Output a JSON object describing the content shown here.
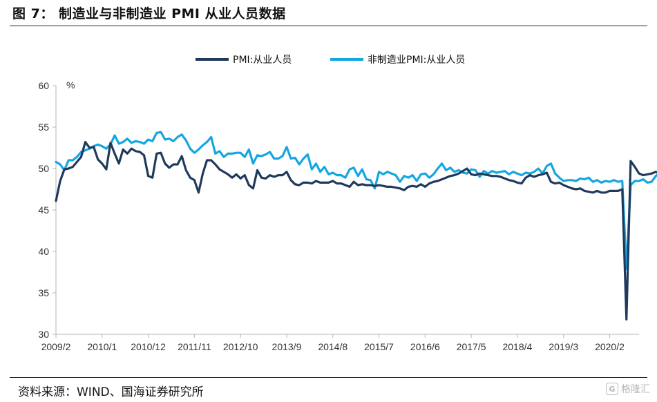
{
  "figure": {
    "title": "图 7：  制造业与非制造业 PMI 从业人员数据",
    "source": "资料来源：WIND、国海证券研究所",
    "watermark": "格隆汇",
    "watermark_icon": "G"
  },
  "colors": {
    "series_manufacturing": "#1f3a5c",
    "series_non_manufacturing": "#15a6e2",
    "axis": "#b5b5b5"
  },
  "chart_data": {
    "type": "line",
    "title": "",
    "ylabel": "%",
    "xlabel": "",
    "ylim": [
      30,
      60
    ],
    "yticks": [
      30,
      35,
      40,
      45,
      50,
      55,
      60
    ],
    "x_range": [
      0,
      139
    ],
    "xticks": [
      {
        "index": 0,
        "label": "2009/2"
      },
      {
        "index": 11,
        "label": "2010/1"
      },
      {
        "index": 22,
        "label": "2010/12"
      },
      {
        "index": 33,
        "label": "2011/11"
      },
      {
        "index": 44,
        "label": "2012/10"
      },
      {
        "index": 55,
        "label": "2013/9"
      },
      {
        "index": 66,
        "label": "2014/8"
      },
      {
        "index": 77,
        "label": "2015/7"
      },
      {
        "index": 88,
        "label": "2016/6"
      },
      {
        "index": 99,
        "label": "2017/5"
      },
      {
        "index": 110,
        "label": "2018/4"
      },
      {
        "index": 121,
        "label": "2019/3"
      },
      {
        "index": 132,
        "label": "2020/2"
      }
    ],
    "legend_position": "top-center",
    "series": [
      {
        "name": "PMI:从业人员",
        "values": [
          46.1,
          48.5,
          49.9,
          50.0,
          50.2,
          50.8,
          51.4,
          53.2,
          52.5,
          52.6,
          51.1,
          50.6,
          49.9,
          53.1,
          51.8,
          50.6,
          52.3,
          51.8,
          52.4,
          52.1,
          52.0,
          51.6,
          49.1,
          48.9,
          51.8,
          51.9,
          50.6,
          50.1,
          50.5,
          50.5,
          51.5,
          49.8,
          48.9,
          48.6,
          47.1,
          49.4,
          51.0,
          51.0,
          50.5,
          49.9,
          49.6,
          49.3,
          48.9,
          49.3,
          48.8,
          49.2,
          48.0,
          47.6,
          49.8,
          48.9,
          48.8,
          49.2,
          49.0,
          49.2,
          49.2,
          49.6,
          48.6,
          48.1,
          48.0,
          48.3,
          48.3,
          48.2,
          48.5,
          48.3,
          48.3,
          48.3,
          48.5,
          48.2,
          48.2,
          48.0,
          47.8,
          48.4,
          48.0,
          48.1,
          48.0,
          48.0,
          47.9,
          48.0,
          47.9,
          47.8,
          47.8,
          47.7,
          47.6,
          47.4,
          47.8,
          47.9,
          47.8,
          48.1,
          47.8,
          48.2,
          48.4,
          48.5,
          48.7,
          48.9,
          49.1,
          49.2,
          49.4,
          49.7,
          50.0,
          49.3,
          49.2,
          49.4,
          49.3,
          49.2,
          49.1,
          49.1,
          49.0,
          48.8,
          48.6,
          48.5,
          48.3,
          48.2,
          48.9,
          49.2,
          49.0,
          49.2,
          49.3,
          49.5,
          48.4,
          48.2,
          48.3,
          48.0,
          47.8,
          47.6,
          47.5,
          47.6,
          47.3,
          47.2,
          47.1,
          47.3,
          47.1,
          47.1,
          47.3,
          47.3,
          47.3,
          47.5,
          31.8,
          50.9,
          50.2,
          49.4,
          49.2,
          49.3,
          49.4,
          49.6,
          49.4
        ]
      },
      {
        "name": "非制造业PMI:从业人员",
        "values": [
          50.8,
          50.5,
          49.8,
          51.0,
          51.0,
          51.4,
          52.0,
          52.2,
          52.4,
          52.7,
          52.9,
          52.7,
          52.4,
          52.9,
          54.0,
          53.0,
          53.2,
          53.6,
          53.1,
          53.3,
          53.2,
          53.0,
          53.5,
          53.3,
          54.3,
          54.4,
          53.5,
          53.6,
          53.3,
          53.8,
          54.1,
          53.4,
          52.4,
          51.9,
          52.3,
          52.8,
          53.2,
          53.8,
          51.8,
          52.1,
          51.4,
          51.8,
          51.8,
          51.9,
          51.9,
          51.4,
          52.3,
          50.6,
          51.6,
          51.5,
          51.7,
          52.0,
          51.2,
          51.2,
          51.5,
          52.6,
          51.2,
          51.3,
          50.5,
          51.2,
          51.7,
          49.9,
          50.6,
          49.6,
          50.2,
          49.3,
          49.5,
          49.2,
          49.2,
          48.9,
          49.9,
          50.1,
          49.1,
          49.9,
          48.7,
          48.6,
          47.6,
          49.6,
          49.3,
          49.6,
          49.4,
          49.2,
          48.4,
          49.1,
          48.9,
          49.2,
          48.5,
          49.3,
          49.4,
          48.9,
          49.3,
          50.0,
          50.6,
          49.8,
          50.1,
          49.6,
          49.8,
          49.5,
          49.4,
          49.9,
          49.8,
          49.0,
          49.7,
          49.4,
          49.7,
          49.5,
          49.6,
          49.7,
          49.3,
          49.6,
          49.4,
          49.2,
          49.5,
          49.4,
          49.6,
          50.0,
          49.4,
          50.3,
          50.6,
          49.4,
          48.9,
          48.5,
          48.6,
          48.6,
          48.5,
          48.8,
          48.7,
          48.9,
          48.4,
          48.6,
          48.3,
          48.5,
          48.4,
          48.6,
          48.4,
          48.5,
          37.9,
          48.0,
          48.5,
          48.5,
          48.7,
          48.3,
          48.4,
          49.1,
          49.5
        ]
      }
    ]
  }
}
